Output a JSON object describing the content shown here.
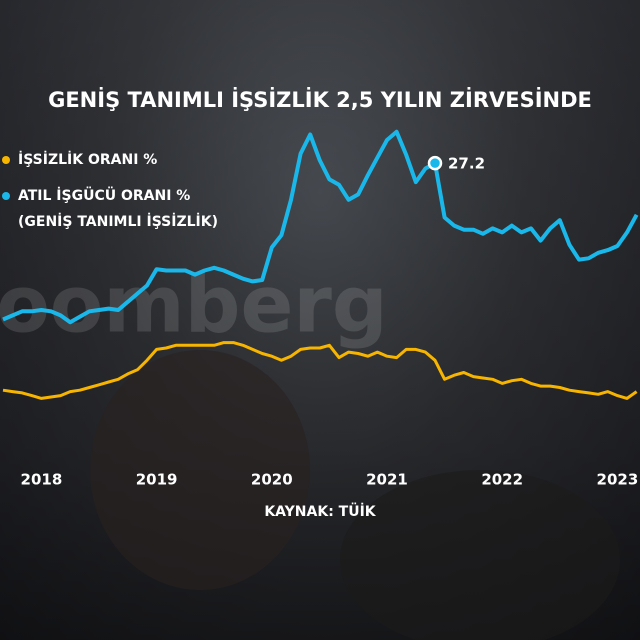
{
  "chart_data": {
    "type": "line",
    "title": "GENİŞ TANIMLI İŞSİZLİK 2,5 YILIN ZİRVESİNDE",
    "source": "KAYNAK: TÜİK",
    "watermark": "Bloomberg",
    "categories": [
      null,
      null,
      null,
      null,
      "2018",
      null,
      null,
      null,
      null,
      null,
      null,
      null,
      null,
      null,
      null,
      null,
      "2019",
      null,
      null,
      null,
      null,
      null,
      null,
      null,
      null,
      null,
      null,
      null,
      "2020",
      null,
      null,
      null,
      null,
      null,
      null,
      null,
      null,
      null,
      null,
      null,
      "2021",
      null,
      null,
      null,
      null,
      null,
      null,
      null,
      null,
      null,
      null,
      null,
      "2022",
      null,
      null,
      null,
      null,
      null,
      null,
      null,
      null,
      null,
      null,
      null,
      "2023",
      null,
      null
    ],
    "ylim": [
      5,
      35
    ],
    "series": [
      {
        "name": "İŞSİZLİK ORANI %",
        "color": "#f7b500",
        "values": [
          10.5,
          10.4,
          10.3,
          10.1,
          9.9,
          10.0,
          10.1,
          10.4,
          10.5,
          10.7,
          10.9,
          11.1,
          11.3,
          11.7,
          12.0,
          12.7,
          13.5,
          13.6,
          13.8,
          13.8,
          13.8,
          13.8,
          13.8,
          14.0,
          14.0,
          13.8,
          13.5,
          13.2,
          13.0,
          12.7,
          13.0,
          13.5,
          13.6,
          13.6,
          13.8,
          12.9,
          13.3,
          13.2,
          13.0,
          13.3,
          13.0,
          12.9,
          13.5,
          13.5,
          13.3,
          12.7,
          11.3,
          11.6,
          11.8,
          11.5,
          11.4,
          11.3,
          11.0,
          11.2,
          11.3,
          11.0,
          10.8,
          10.8,
          10.7,
          10.5,
          10.4,
          10.3,
          10.2,
          10.4,
          10.1,
          9.9,
          10.4
        ]
      },
      {
        "name": "ATIL İŞGÜCÜ ORANI %\n(GENİŞ TANIMLI İŞSİZLİK)",
        "color": "#1ab8ea",
        "values": [
          15.7,
          16.0,
          16.3,
          16.3,
          16.4,
          16.3,
          16.0,
          15.5,
          15.9,
          16.3,
          16.4,
          16.5,
          16.4,
          17.0,
          17.6,
          18.2,
          19.4,
          19.3,
          19.3,
          19.3,
          19.0,
          19.3,
          19.5,
          19.3,
          19.0,
          18.7,
          18.5,
          18.6,
          21.0,
          21.9,
          24.5,
          27.9,
          29.3,
          27.4,
          26.0,
          25.6,
          24.5,
          24.9,
          26.3,
          27.6,
          28.9,
          29.5,
          27.8,
          25.8,
          26.8,
          27.2,
          23.2,
          22.6,
          22.3,
          22.3,
          22.0,
          22.4,
          22.1,
          22.6,
          22.1,
          22.4,
          21.5,
          22.4,
          23.0,
          21.2,
          20.1,
          20.2,
          20.6,
          20.8,
          21.1,
          22.1,
          23.4
        ],
        "value_labels": [
          null,
          null,
          null,
          null,
          null,
          null,
          null,
          null,
          null,
          null,
          null,
          null,
          null,
          null,
          null,
          null,
          null,
          null,
          null,
          null,
          null,
          null,
          null,
          null,
          null,
          null,
          null,
          null,
          null,
          null,
          null,
          null,
          null,
          null,
          null,
          null,
          null,
          null,
          null,
          null,
          null,
          null,
          null,
          null,
          null,
          "27.2",
          null,
          null,
          null,
          null,
          null,
          null,
          null,
          null,
          null,
          null,
          null,
          null,
          null,
          null,
          null,
          null,
          null,
          null,
          null,
          null,
          null
        ]
      }
    ]
  }
}
